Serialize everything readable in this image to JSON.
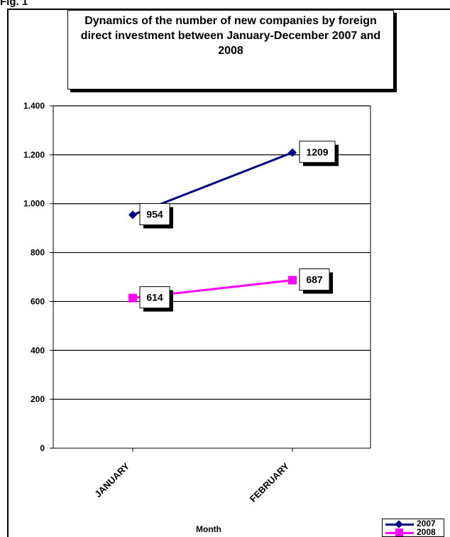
{
  "page": {
    "top_label": "Fig. 1"
  },
  "chart_data": {
    "type": "line",
    "title": "Dynamics of the number of new companies by foreign direct investment between January-December 2007 and  2008",
    "xlabel": "Month",
    "ylabel": "",
    "categories": [
      "JANUARY",
      "FEBRUARY"
    ],
    "ylim": [
      0,
      1400
    ],
    "yticks": [
      0,
      200,
      400,
      600,
      800,
      1000,
      1200,
      1400
    ],
    "ytick_labels": [
      "0",
      "200",
      "400",
      "600",
      "800",
      "1.000",
      "1.200",
      "1.400"
    ],
    "grid": true,
    "legend_position": "bottom-right",
    "series": [
      {
        "name": "2007",
        "values": [
          954,
          1209
        ],
        "data_labels": [
          "954",
          "1209"
        ],
        "color": "#000080",
        "marker": "diamond"
      },
      {
        "name": "2008",
        "values": [
          614,
          687
        ],
        "data_labels": [
          "614",
          "687"
        ],
        "color": "#ff00ff",
        "marker": "square"
      }
    ]
  }
}
